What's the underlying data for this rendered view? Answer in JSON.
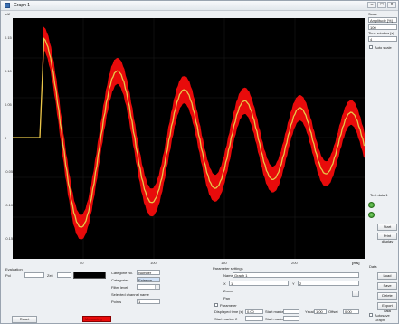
{
  "window": {
    "title": "Graph 1",
    "min_label": "–",
    "max_label": "□",
    "close_label": "x"
  },
  "plot": {
    "y_unit": "mV",
    "x_unit": "[ms]",
    "y_ticks": [
      "0.15",
      "0.10",
      "0.05",
      "0",
      "-0.05",
      "-0.10",
      "-0.15"
    ],
    "x_ticks": [
      "50",
      "100",
      "150",
      "200",
      "250"
    ],
    "trace_color": "#e80b0b",
    "mean_color": "#e6c84a"
  },
  "right_panel": {
    "field1_label": "Scale",
    "field1_value": "Amplitude [%]",
    "field2_value": "100",
    "field3_label": "Time window [s]",
    "field3_value": "4",
    "checkbox_label": "Auto scale",
    "test_label": "Test data 1",
    "start_label": "Start",
    "print_label": "Print display",
    "load_section": "Data",
    "load_label": "Load",
    "save_label": "Save",
    "delete_label": "Delete",
    "export_label": "Export data",
    "autosave_label": "Autosave Graph"
  },
  "bottom": {
    "evaluation_label": "Evaluation",
    "col_a_label": "Pol",
    "col_b_label": "Zeit",
    "value_a": "",
    "categories": {
      "label_1": "Categorie no.",
      "value_1": "Number",
      "label_2": "Categories",
      "value_2": "Extrema",
      "label_3": "Filter level",
      "label_4": "Selected channel name",
      "label_5": "Points",
      "value_5": "1"
    },
    "params": {
      "section": "Parameter settings",
      "name_label": "Name",
      "name_value": "Graph 1",
      "x_label": "X",
      "x_value": "1",
      "y_label": "Y",
      "y_value": "2",
      "zoom_label": "Zoom",
      "pan_label": "Pan",
      "checkbox_label": "Parameter",
      "f1_label": "Displayed time [s]",
      "f1_value": "0.00",
      "f2_label": "Start marker 1",
      "f3_label": "Start marker 2",
      "f4_label": "Yscale",
      "f4_value": "1.00",
      "f5_label": "Offset",
      "f5_value": "0.00",
      "f6_label": "Start marker 3",
      "f7_label": "Start marker 4"
    },
    "reset_label": "Reset",
    "status_text": "Measuring"
  }
}
